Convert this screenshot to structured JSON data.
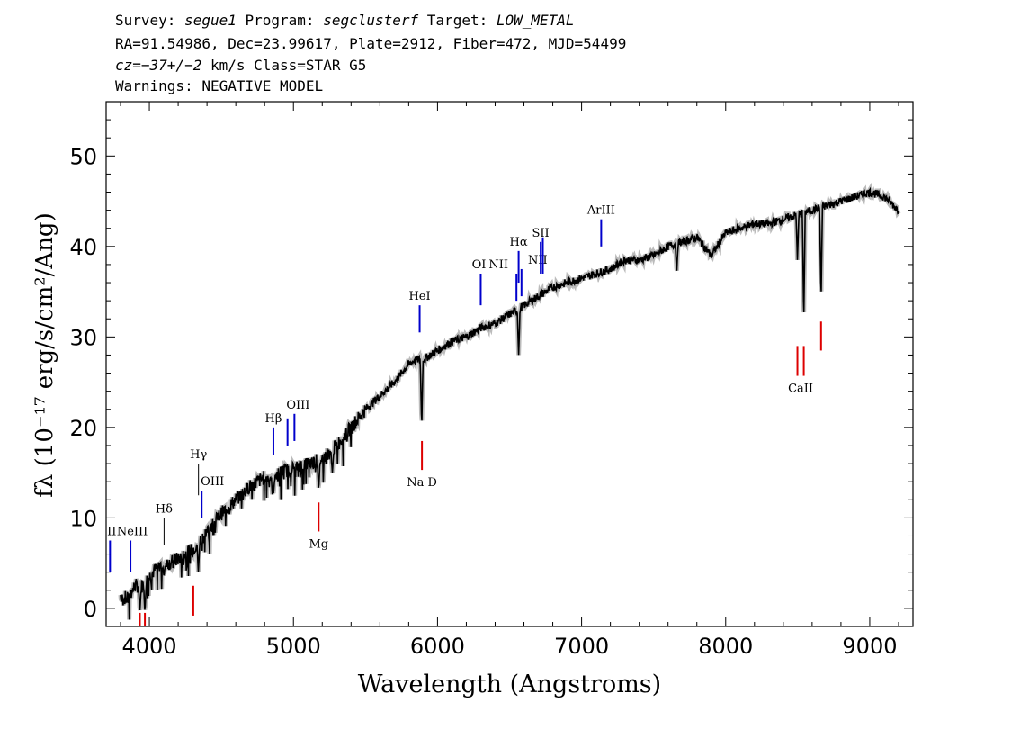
{
  "header": {
    "line1": {
      "survey_label": "Survey: ",
      "survey": "segue1",
      "program_label": " Program: ",
      "program": "segclusterf",
      "target_label": " Target: ",
      "target": "LOW_METAL"
    },
    "line2": "RA=91.54986, Dec=23.99617, Plate=2912, Fiber=472, MJD=54499",
    "line3": {
      "cz_label": "cz",
      "cz_value": "=−37+/−2",
      "cz_rest": " km/s Class=STAR G5"
    },
    "line4": "Warnings: NEGATIVE_MODEL"
  },
  "chart_data": {
    "type": "line",
    "xlabel": "Wavelength (Angstroms)",
    "ylabel": "fλ (10⁻¹⁷ erg/s/cm²/Ang)",
    "xlim": [
      3700,
      9300
    ],
    "ylim": [
      -2,
      56
    ],
    "xticks": [
      4000,
      5000,
      6000,
      7000,
      8000,
      9000
    ],
    "yticks": [
      0,
      10,
      20,
      30,
      40,
      50
    ],
    "grid": false,
    "colors": {
      "spectrum": "#000000",
      "error": "#bbbbbb",
      "emission": "#0000cc",
      "absorption": "#dd0000",
      "balmer": "#000000"
    },
    "series": [
      {
        "x": [
          3800,
          3850,
          3900,
          3950,
          4000,
          4050,
          4100,
          4150,
          4200,
          4250,
          4300,
          4350,
          4400,
          4450,
          4500,
          4600,
          4700,
          4800,
          4850,
          4900,
          5000,
          5100,
          5200,
          5300,
          5400,
          5500,
          5600,
          5700,
          5800,
          5850,
          5900,
          6000,
          6100,
          6200,
          6300,
          6400,
          6500,
          6600,
          6700,
          6800,
          6900,
          7000,
          7100,
          7200,
          7300,
          7400,
          7500,
          7600,
          7700,
          7800,
          7900,
          8000,
          8100,
          8200,
          8300,
          8400,
          8500,
          8600,
          8700,
          8800,
          8900,
          9000,
          9100,
          9200
        ],
        "y": [
          1.5,
          1.0,
          2.5,
          2.5,
          3.5,
          4.5,
          5.0,
          5.0,
          5.5,
          6.0,
          6.5,
          7.5,
          8.5,
          9.5,
          10.5,
          12.0,
          13.5,
          14.5,
          14.5,
          15.0,
          15.5,
          16.0,
          16.5,
          18.0,
          20.0,
          22.0,
          23.5,
          25.0,
          27.0,
          27.5,
          27.5,
          28.5,
          29.5,
          30.0,
          31.0,
          31.5,
          32.5,
          33.5,
          34.5,
          35.5,
          36.0,
          36.5,
          37.0,
          37.5,
          38.5,
          38.5,
          39.0,
          40.0,
          40.5,
          41.0,
          39.0,
          41.5,
          42.0,
          42.5,
          42.5,
          43.0,
          43.5,
          44.0,
          44.5,
          45.0,
          45.5,
          46.0,
          45.5,
          44.0
        ]
      }
    ],
    "absorption_dips": [
      {
        "x": 3934,
        "y": -0.5
      },
      {
        "x": 3969,
        "y": -0.5
      },
      {
        "x": 4101,
        "y": 3.5
      },
      {
        "x": 4340,
        "y": 4.0
      },
      {
        "x": 4861,
        "y": 12.5
      },
      {
        "x": 5175,
        "y": 13.0
      },
      {
        "x": 5270,
        "y": 15.0
      },
      {
        "x": 5890,
        "y": 20.0
      },
      {
        "x": 6563,
        "y": 28.0
      },
      {
        "x": 7660,
        "y": 37.0
      },
      {
        "x": 8498,
        "y": 38.5
      },
      {
        "x": 8542,
        "y": 31.5
      },
      {
        "x": 8662,
        "y": 34.0
      }
    ],
    "line_markers": [
      {
        "label": "NeIII",
        "x": 3869,
        "y1": 4.0,
        "y2": 7.5,
        "kind": "emission"
      },
      {
        "label": "II",
        "x": 3727,
        "y1": 4.0,
        "y2": 7.5,
        "kind": "emission"
      },
      {
        "label": "Hδ",
        "x": 4102,
        "y1": 7.0,
        "y2": 10.0,
        "kind": "balmer"
      },
      {
        "label": "Hγ",
        "x": 4341,
        "y1": 12.5,
        "y2": 16.0,
        "kind": "balmer"
      },
      {
        "label": "OIII",
        "x": 4363,
        "y1": 10.0,
        "y2": 13.0,
        "kind": "emission"
      },
      {
        "label": "Hβ",
        "x": 4861,
        "y1": 17.0,
        "y2": 20.0,
        "kind": "emission"
      },
      {
        "label": "",
        "x": 4959,
        "y1": 18.0,
        "y2": 21.0,
        "kind": "emission"
      },
      {
        "label": "OIII",
        "x": 5007,
        "y1": 18.5,
        "y2": 21.5,
        "kind": "emission"
      },
      {
        "label": "HeI",
        "x": 5876,
        "y1": 30.5,
        "y2": 33.5,
        "kind": "emission"
      },
      {
        "label": "OI",
        "x": 6300,
        "y1": 33.5,
        "y2": 37.0,
        "kind": "emission"
      },
      {
        "label": "NII",
        "x": 6548,
        "y1": 34.0,
        "y2": 37.0,
        "kind": "emission"
      },
      {
        "label": "Hα",
        "x": 6563,
        "y1": 36.0,
        "y2": 39.5,
        "kind": "emission"
      },
      {
        "label": "NII",
        "x": 6583,
        "y1": 34.5,
        "y2": 37.5,
        "kind": "emission"
      },
      {
        "label": "SII",
        "x": 6716,
        "y1": 37.0,
        "y2": 40.5,
        "kind": "emission"
      },
      {
        "label": "",
        "x": 6731,
        "y1": 37.0,
        "y2": 41.0,
        "kind": "emission"
      },
      {
        "label": "ArIII",
        "x": 7136,
        "y1": 40.0,
        "y2": 43.0,
        "kind": "emission"
      },
      {
        "label": "Na D",
        "x": 5892,
        "y1": 15.3,
        "y2": 18.5,
        "kind": "absorption"
      },
      {
        "label": "Mg",
        "x": 5175,
        "y1": 8.5,
        "y2": 11.7,
        "kind": "absorption"
      },
      {
        "label": "",
        "x": 4305,
        "y1": -0.8,
        "y2": 2.5,
        "kind": "absorption"
      },
      {
        "label": "",
        "x": 3934,
        "y1": -2.0,
        "y2": -0.5,
        "kind": "absorption"
      },
      {
        "label": "",
        "x": 3969,
        "y1": -2.0,
        "y2": -0.5,
        "kind": "absorption"
      },
      {
        "label": "CaII",
        "x": 8498,
        "y1": 25.7,
        "y2": 29.0,
        "kind": "absorption"
      },
      {
        "label": "",
        "x": 8542,
        "y1": 25.7,
        "y2": 29.0,
        "kind": "absorption"
      },
      {
        "label": "",
        "x": 8662,
        "y1": 28.5,
        "y2": 31.7,
        "kind": "absorption"
      }
    ]
  }
}
